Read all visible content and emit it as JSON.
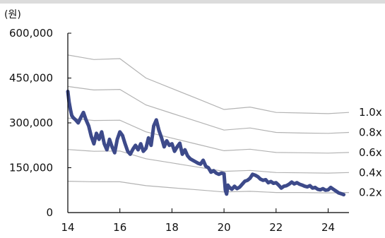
{
  "chart_data": {
    "type": "line",
    "unit_label": "(원)",
    "xlim": [
      14,
      24.8
    ],
    "ylim": [
      0,
      600000
    ],
    "x_ticks": [
      14,
      16,
      18,
      20,
      22,
      24
    ],
    "x_tick_labels": [
      "14",
      "16",
      "18",
      "20",
      "22",
      "24"
    ],
    "y_ticks": [
      0,
      150000,
      300000,
      450000,
      600000
    ],
    "y_tick_labels": [
      "0",
      "150,000",
      "300,000",
      "450,000",
      "600,000"
    ],
    "price_color": "#3d4a8a",
    "band_color": "#b3b3b3",
    "bands": [
      {
        "name": "1.0x",
        "x": [
          14.0,
          15.0,
          16.0,
          17.0,
          18.0,
          19.0,
          20.0,
          21.0,
          22.0,
          23.0,
          24.0,
          24.8
        ],
        "values": [
          527000,
          512000,
          515000,
          450000,
          415000,
          380000,
          345000,
          353000,
          335000,
          333000,
          331000,
          335000
        ]
      },
      {
        "name": "0.8x",
        "x": [
          14.0,
          15.0,
          16.0,
          17.0,
          18.0,
          19.0,
          20.0,
          21.0,
          22.0,
          23.0,
          24.0,
          24.8
        ],
        "values": [
          422000,
          410000,
          412000,
          360000,
          332000,
          304000,
          276000,
          283000,
          268000,
          266000,
          265000,
          268000
        ]
      },
      {
        "name": "0.6x",
        "x": [
          14.0,
          15.0,
          16.0,
          17.0,
          18.0,
          19.0,
          20.0,
          21.0,
          22.0,
          23.0,
          24.0,
          24.8
        ],
        "values": [
          316000,
          308000,
          309000,
          270000,
          249000,
          228000,
          207000,
          212000,
          201000,
          200000,
          199000,
          201000
        ]
      },
      {
        "name": "0.4x",
        "x": [
          14.0,
          15.0,
          16.0,
          17.0,
          18.0,
          19.0,
          20.0,
          21.0,
          22.0,
          23.0,
          24.0,
          24.8
        ],
        "values": [
          211000,
          205000,
          206000,
          180000,
          166000,
          152000,
          138000,
          141000,
          134000,
          133000,
          132000,
          134000
        ]
      },
      {
        "name": "0.2x",
        "x": [
          14.0,
          15.0,
          16.0,
          17.0,
          18.0,
          19.0,
          20.0,
          21.0,
          22.0,
          23.0,
          24.0,
          24.8
        ],
        "values": [
          105000,
          103000,
          103000,
          90000,
          83000,
          76000,
          69000,
          71000,
          67000,
          67000,
          66000,
          67000
        ]
      }
    ],
    "price_series": {
      "x": [
        14.0,
        14.05,
        14.1,
        14.15,
        14.2,
        14.3,
        14.4,
        14.5,
        14.6,
        14.7,
        14.8,
        14.9,
        15.0,
        15.1,
        15.2,
        15.3,
        15.4,
        15.5,
        15.6,
        15.7,
        15.8,
        15.9,
        16.0,
        16.1,
        16.2,
        16.3,
        16.4,
        16.5,
        16.6,
        16.7,
        16.8,
        16.9,
        17.0,
        17.1,
        17.2,
        17.3,
        17.4,
        17.5,
        17.6,
        17.7,
        17.8,
        17.9,
        18.0,
        18.1,
        18.2,
        18.3,
        18.4,
        18.5,
        18.6,
        18.7,
        18.8,
        18.9,
        19.0,
        19.1,
        19.2,
        19.3,
        19.4,
        19.5,
        19.6,
        19.7,
        19.8,
        19.9,
        20.0,
        20.05,
        20.1,
        20.15,
        20.2,
        20.3,
        20.4,
        20.5,
        20.6,
        20.7,
        20.8,
        20.9,
        21.0,
        21.1,
        21.2,
        21.3,
        21.4,
        21.5,
        21.6,
        21.7,
        21.8,
        21.9,
        22.0,
        22.1,
        22.2,
        22.3,
        22.4,
        22.5,
        22.6,
        22.7,
        22.8,
        22.9,
        23.0,
        23.1,
        23.2,
        23.3,
        23.4,
        23.5,
        23.6,
        23.7,
        23.8,
        23.9,
        24.0,
        24.1,
        24.2,
        24.3,
        24.4,
        24.5,
        24.6
      ],
      "values": [
        405000,
        370000,
        345000,
        325000,
        318000,
        310000,
        300000,
        318000,
        335000,
        310000,
        290000,
        255000,
        230000,
        265000,
        245000,
        270000,
        230000,
        210000,
        245000,
        220000,
        200000,
        245000,
        270000,
        258000,
        230000,
        205000,
        195000,
        212000,
        225000,
        210000,
        230000,
        205000,
        215000,
        250000,
        225000,
        290000,
        310000,
        275000,
        250000,
        220000,
        240000,
        225000,
        230000,
        205000,
        220000,
        232000,
        195000,
        210000,
        190000,
        180000,
        175000,
        170000,
        165000,
        162000,
        175000,
        155000,
        150000,
        135000,
        140000,
        132000,
        128000,
        132000,
        130000,
        75000,
        62000,
        92000,
        85000,
        78000,
        88000,
        80000,
        85000,
        95000,
        105000,
        108000,
        115000,
        128000,
        125000,
        120000,
        112000,
        108000,
        110000,
        100000,
        104000,
        98000,
        100000,
        92000,
        82000,
        88000,
        90000,
        95000,
        102000,
        96000,
        100000,
        95000,
        92000,
        88000,
        86000,
        90000,
        82000,
        84000,
        78000,
        76000,
        80000,
        75000,
        76000,
        84000,
        78000,
        72000,
        66000,
        63000,
        60000
      ]
    }
  }
}
